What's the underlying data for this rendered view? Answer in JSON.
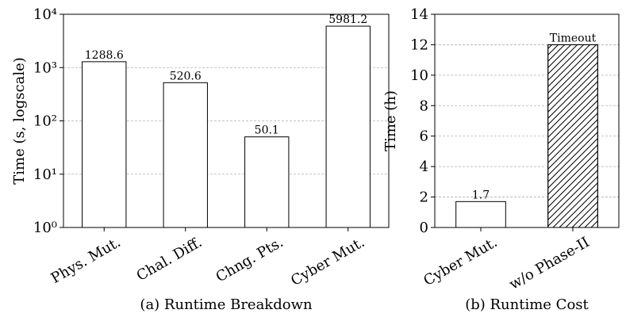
{
  "chart_data": [
    {
      "type": "bar",
      "xlabel": "(a) Runtime Breakdown",
      "ylabel": "Time (s, logscale)",
      "categories": [
        "Phys. Mut.",
        "Chal. Diff.",
        "Chng. Pts.",
        "Cyber Mut."
      ],
      "values": [
        1288.6,
        520.6,
        50.1,
        5981.2
      ],
      "color": "#ffffff",
      "edgecolor": "#000000",
      "log_y": true,
      "ylim": [
        1,
        10000
      ],
      "yticks": [
        {
          "value": 1,
          "label": "10⁰"
        },
        {
          "value": 10,
          "label": "10¹"
        },
        {
          "value": 100,
          "label": "10²"
        },
        {
          "value": 1000,
          "label": "10³"
        },
        {
          "value": 10000,
          "label": "10⁴"
        }
      ],
      "grid": true,
      "bar_hatch": [
        false,
        false,
        false,
        false
      ]
    },
    {
      "type": "bar",
      "xlabel": "(b) Runtime Cost",
      "ylabel": "Time (h)",
      "categories": [
        "Cyber Mut.",
        "w/o Phase-II"
      ],
      "values": [
        1.7,
        12
      ],
      "value_labels": [
        "1.7",
        "Timeout"
      ],
      "color": "#ffffff",
      "edgecolor": "#000000",
      "log_y": false,
      "ylim": [
        0,
        14
      ],
      "yticks": [
        0,
        2,
        4,
        6,
        8,
        10,
        12,
        14
      ],
      "grid": true,
      "bar_hatch": [
        false,
        true
      ]
    }
  ]
}
